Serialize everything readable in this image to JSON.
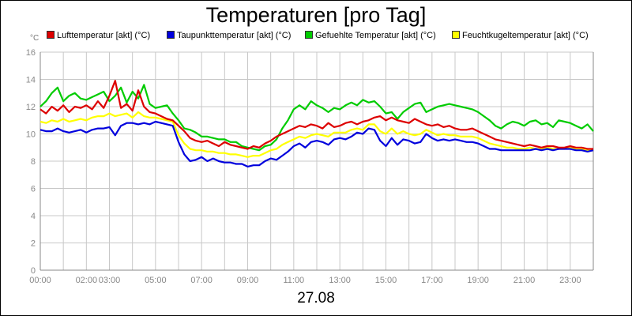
{
  "chart_data": {
    "type": "line",
    "title": "Temperaturen [pro Tag]",
    "unit": "°C",
    "date_label": "27.08",
    "xlabel": "",
    "ylabel": "°C",
    "x_range_hours": [
      0,
      24
    ],
    "ylim": [
      0,
      16
    ],
    "y_ticks": [
      0,
      2,
      4,
      6,
      8,
      10,
      12,
      14,
      16
    ],
    "x_ticks": [
      {
        "h": 0,
        "label": "00:00"
      },
      {
        "h": 2,
        "label": "02:00"
      },
      {
        "h": 3,
        "label": "03:00"
      },
      {
        "h": 5,
        "label": "05:00"
      },
      {
        "h": 7,
        "label": "07:00"
      },
      {
        "h": 9,
        "label": "09:00"
      },
      {
        "h": 11,
        "label": "11:00"
      },
      {
        "h": 13,
        "label": "13:00"
      },
      {
        "h": 15,
        "label": "15:00"
      },
      {
        "h": 17,
        "label": "17:00"
      },
      {
        "h": 19,
        "label": "19:00"
      },
      {
        "h": 21,
        "label": "21:00"
      },
      {
        "h": 23,
        "label": "23:00"
      }
    ],
    "x_minor_ticks_hours": [
      1,
      4,
      6,
      8,
      10,
      12,
      14,
      16,
      18,
      20,
      22
    ],
    "grid": true,
    "legend_position": "top",
    "series": [
      {
        "name": "Lufttemperatur [akt] (°C)",
        "color": "#dd0000",
        "x": [
          0,
          0.25,
          0.5,
          0.75,
          1,
          1.25,
          1.5,
          1.75,
          2,
          2.25,
          2.5,
          2.75,
          3,
          3.25,
          3.5,
          3.75,
          4,
          4.25,
          4.5,
          4.75,
          5,
          5.25,
          5.5,
          5.75,
          6,
          6.25,
          6.5,
          6.75,
          7,
          7.25,
          7.5,
          7.75,
          8,
          8.25,
          8.5,
          8.75,
          9,
          9.25,
          9.5,
          9.75,
          10,
          10.25,
          10.5,
          10.75,
          11,
          11.25,
          11.5,
          11.75,
          12,
          12.25,
          12.5,
          12.75,
          13,
          13.25,
          13.5,
          13.75,
          14,
          14.25,
          14.5,
          14.75,
          15,
          15.25,
          15.5,
          15.75,
          16,
          16.25,
          16.5,
          16.75,
          17,
          17.25,
          17.5,
          17.75,
          18,
          18.25,
          18.5,
          18.75,
          19,
          19.25,
          19.5,
          19.75,
          20,
          20.25,
          20.5,
          20.75,
          21,
          21.25,
          21.5,
          21.75,
          22,
          22.25,
          22.5,
          22.75,
          23,
          23.25,
          23.5,
          23.75,
          24
        ],
        "y": [
          11.8,
          11.5,
          12.0,
          11.7,
          12.1,
          11.6,
          12.0,
          11.9,
          12.1,
          11.8,
          12.4,
          11.9,
          12.8,
          13.9,
          11.9,
          12.2,
          11.7,
          13.2,
          12.0,
          11.6,
          11.5,
          11.3,
          11.1,
          11.0,
          10.6,
          10.2,
          9.7,
          9.5,
          9.4,
          9.5,
          9.3,
          9.1,
          9.4,
          9.2,
          9.1,
          9.0,
          8.9,
          9.1,
          9.0,
          9.3,
          9.5,
          9.8,
          10.0,
          10.2,
          10.4,
          10.6,
          10.5,
          10.7,
          10.6,
          10.4,
          10.8,
          10.5,
          10.6,
          10.8,
          10.9,
          10.7,
          10.9,
          11.0,
          11.2,
          11.3,
          11.0,
          11.2,
          11.0,
          10.9,
          10.8,
          11.1,
          10.9,
          10.7,
          10.6,
          10.7,
          10.5,
          10.6,
          10.4,
          10.3,
          10.3,
          10.4,
          10.2,
          10.0,
          9.8,
          9.6,
          9.5,
          9.4,
          9.3,
          9.2,
          9.1,
          9.2,
          9.1,
          9.0,
          9.1,
          9.1,
          9.0,
          9.0,
          9.1,
          9.0,
          9.0,
          8.9,
          8.9
        ]
      },
      {
        "name": "Taupunkttemperatur [akt] (°C)",
        "color": "#0000dd",
        "x": [
          0,
          0.25,
          0.5,
          0.75,
          1,
          1.25,
          1.5,
          1.75,
          2,
          2.25,
          2.5,
          2.75,
          3,
          3.25,
          3.5,
          3.75,
          4,
          4.25,
          4.5,
          4.75,
          5,
          5.25,
          5.5,
          5.75,
          6,
          6.25,
          6.5,
          6.75,
          7,
          7.25,
          7.5,
          7.75,
          8,
          8.25,
          8.5,
          8.75,
          9,
          9.25,
          9.5,
          9.75,
          10,
          10.25,
          10.5,
          10.75,
          11,
          11.25,
          11.5,
          11.75,
          12,
          12.25,
          12.5,
          12.75,
          13,
          13.25,
          13.5,
          13.75,
          14,
          14.25,
          14.5,
          14.75,
          15,
          15.25,
          15.5,
          15.75,
          16,
          16.25,
          16.5,
          16.75,
          17,
          17.25,
          17.5,
          17.75,
          18,
          18.25,
          18.5,
          18.75,
          19,
          19.25,
          19.5,
          19.75,
          20,
          20.25,
          20.5,
          20.75,
          21,
          21.25,
          21.5,
          21.75,
          22,
          22.25,
          22.5,
          22.75,
          23,
          23.25,
          23.5,
          23.75,
          24
        ],
        "y": [
          10.3,
          10.2,
          10.2,
          10.4,
          10.2,
          10.1,
          10.2,
          10.3,
          10.1,
          10.3,
          10.4,
          10.4,
          10.5,
          9.9,
          10.6,
          10.8,
          10.8,
          10.7,
          10.8,
          10.7,
          10.9,
          10.8,
          10.7,
          10.6,
          9.4,
          8.5,
          8.0,
          8.1,
          8.3,
          8.0,
          8.2,
          8.0,
          7.9,
          7.9,
          7.8,
          7.8,
          7.6,
          7.7,
          7.7,
          8.0,
          8.2,
          8.1,
          8.4,
          8.7,
          9.1,
          9.3,
          9.0,
          9.4,
          9.5,
          9.4,
          9.2,
          9.6,
          9.7,
          9.6,
          9.8,
          10.1,
          10.0,
          10.4,
          10.3,
          9.5,
          9.1,
          9.7,
          9.2,
          9.6,
          9.5,
          9.3,
          9.4,
          10.0,
          9.7,
          9.5,
          9.6,
          9.5,
          9.6,
          9.5,
          9.4,
          9.4,
          9.3,
          9.1,
          8.9,
          8.9,
          8.8,
          8.8,
          8.8,
          8.8,
          8.8,
          8.8,
          8.9,
          8.8,
          8.9,
          8.8,
          8.9,
          8.9,
          8.9,
          8.8,
          8.8,
          8.7,
          8.8
        ]
      },
      {
        "name": "Gefuehlte Temperatur [akt] (°C)",
        "color": "#00cc00",
        "x": [
          0,
          0.25,
          0.5,
          0.75,
          1,
          1.25,
          1.5,
          1.75,
          2,
          2.25,
          2.5,
          2.75,
          3,
          3.25,
          3.5,
          3.75,
          4,
          4.25,
          4.5,
          4.75,
          5,
          5.25,
          5.5,
          5.75,
          6,
          6.25,
          6.5,
          6.75,
          7,
          7.25,
          7.5,
          7.75,
          8,
          8.25,
          8.5,
          8.75,
          9,
          9.25,
          9.5,
          9.75,
          10,
          10.25,
          10.5,
          10.75,
          11,
          11.25,
          11.5,
          11.75,
          12,
          12.25,
          12.5,
          12.75,
          13,
          13.25,
          13.5,
          13.75,
          14,
          14.25,
          14.5,
          14.75,
          15,
          15.25,
          15.5,
          15.75,
          16,
          16.25,
          16.5,
          16.75,
          17,
          17.25,
          17.5,
          17.75,
          18,
          18.25,
          18.5,
          18.75,
          19,
          19.25,
          19.5,
          19.75,
          20,
          20.25,
          20.5,
          20.75,
          21,
          21.25,
          21.5,
          21.75,
          22,
          22.25,
          22.5,
          22.75,
          23,
          23.25,
          23.5,
          23.75,
          24
        ],
        "y": [
          12.0,
          12.4,
          13.0,
          13.4,
          12.4,
          12.8,
          13.0,
          12.6,
          12.5,
          12.7,
          12.9,
          13.1,
          12.4,
          12.8,
          13.4,
          12.3,
          13.1,
          12.6,
          13.6,
          12.2,
          11.9,
          12.0,
          12.1,
          11.5,
          11.0,
          10.4,
          10.3,
          10.1,
          9.8,
          9.8,
          9.7,
          9.6,
          9.6,
          9.4,
          9.4,
          9.1,
          9.0,
          8.9,
          8.8,
          9.1,
          9.2,
          9.6,
          10.4,
          11.0,
          11.8,
          12.1,
          11.8,
          12.4,
          12.1,
          11.9,
          11.6,
          11.9,
          11.8,
          12.1,
          12.3,
          12.1,
          12.5,
          12.3,
          12.4,
          12.0,
          11.5,
          11.6,
          11.1,
          11.6,
          11.9,
          12.2,
          12.3,
          11.6,
          11.8,
          12.0,
          12.1,
          12.2,
          12.1,
          12.0,
          11.9,
          11.8,
          11.6,
          11.3,
          11.0,
          10.6,
          10.4,
          10.7,
          10.9,
          10.8,
          10.6,
          10.9,
          11.0,
          10.7,
          10.8,
          10.5,
          11.0,
          10.9,
          10.8,
          10.6,
          10.4,
          10.7,
          10.2
        ]
      },
      {
        "name": "Feuchtkugeltemperatur [akt] (°C)",
        "color": "#ffff00",
        "x": [
          0,
          0.25,
          0.5,
          0.75,
          1,
          1.25,
          1.5,
          1.75,
          2,
          2.25,
          2.5,
          2.75,
          3,
          3.25,
          3.5,
          3.75,
          4,
          4.25,
          4.5,
          4.75,
          5,
          5.25,
          5.5,
          5.75,
          6,
          6.25,
          6.5,
          6.75,
          7,
          7.25,
          7.5,
          7.75,
          8,
          8.25,
          8.5,
          8.75,
          9,
          9.25,
          9.5,
          9.75,
          10,
          10.25,
          10.5,
          10.75,
          11,
          11.25,
          11.5,
          11.75,
          12,
          12.25,
          12.5,
          12.75,
          13,
          13.25,
          13.5,
          13.75,
          14,
          14.25,
          14.5,
          14.75,
          15,
          15.25,
          15.5,
          15.75,
          16,
          16.25,
          16.5,
          16.75,
          17,
          17.25,
          17.5,
          17.75,
          18,
          18.25,
          18.5,
          18.75,
          19,
          19.25,
          19.5,
          19.75,
          20,
          20.25,
          20.5,
          20.75,
          21,
          21.25,
          21.5,
          21.75,
          22,
          22.25,
          22.5,
          22.75,
          23,
          23.25,
          23.5,
          23.75,
          24
        ],
        "y": [
          10.9,
          10.8,
          11.0,
          10.9,
          11.1,
          10.9,
          11.0,
          11.1,
          11.0,
          11.2,
          11.3,
          11.3,
          11.5,
          11.3,
          11.4,
          11.5,
          11.2,
          11.6,
          11.3,
          11.2,
          11.2,
          11.1,
          11.0,
          10.9,
          9.9,
          9.3,
          8.9,
          8.8,
          8.8,
          8.7,
          8.7,
          8.6,
          8.6,
          8.5,
          8.5,
          8.4,
          8.3,
          8.4,
          8.4,
          8.6,
          8.8,
          8.9,
          9.2,
          9.4,
          9.6,
          9.8,
          9.7,
          9.9,
          10.0,
          9.9,
          9.8,
          10.1,
          10.1,
          10.1,
          10.3,
          10.4,
          10.3,
          10.7,
          10.7,
          10.2,
          10.0,
          10.4,
          10.0,
          10.2,
          10.0,
          9.9,
          10.0,
          10.3,
          10.1,
          9.9,
          10.0,
          9.9,
          9.9,
          9.8,
          9.8,
          9.8,
          9.7,
          9.5,
          9.3,
          9.2,
          9.1,
          9.0,
          9.0,
          8.9,
          8.9,
          9.0,
          8.9,
          8.9,
          9.0,
          8.9,
          8.9,
          8.9,
          9.0,
          8.9,
          8.9,
          8.8,
          8.8
        ]
      }
    ]
  }
}
